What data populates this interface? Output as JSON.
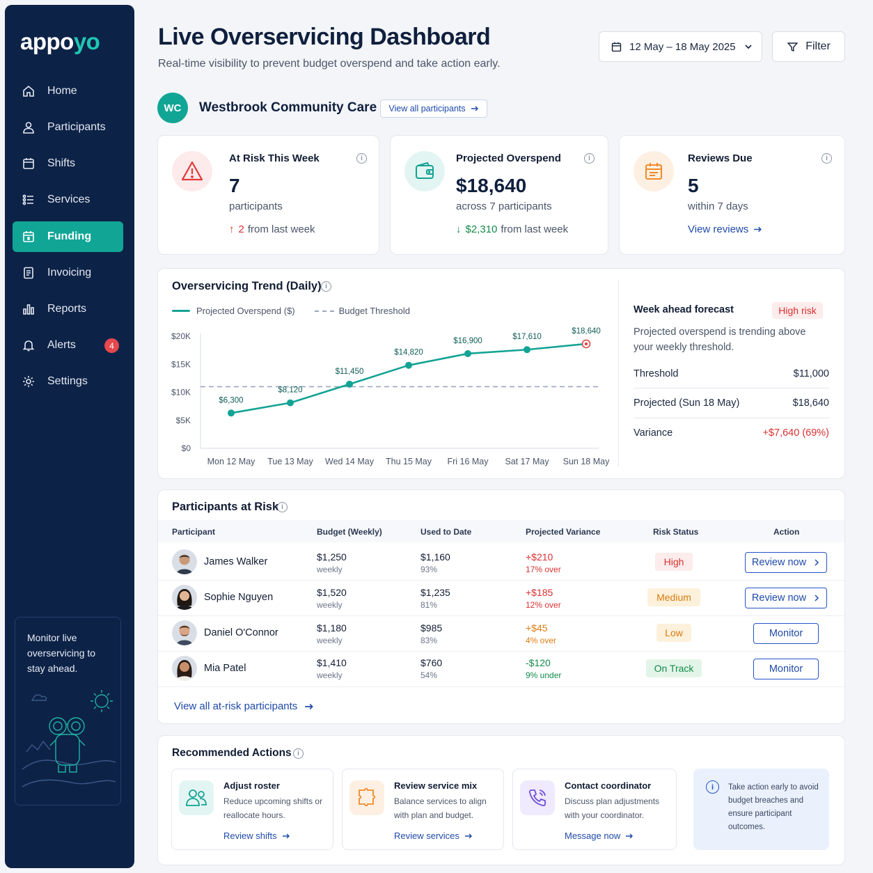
{
  "app": {
    "logo_main": "appo",
    "logo_accent": "yo"
  },
  "sidebar": {
    "items": [
      {
        "label": "Home",
        "icon": "home-icon"
      },
      {
        "label": "Participants",
        "icon": "user-icon"
      },
      {
        "label": "Shifts",
        "icon": "calendar-icon"
      },
      {
        "label": "Services",
        "icon": "services-icon"
      },
      {
        "label": "Funding",
        "icon": "funding-icon",
        "active": true
      },
      {
        "label": "Invoicing",
        "icon": "invoice-icon"
      },
      {
        "label": "Reports",
        "icon": "bar-chart-icon"
      },
      {
        "label": "Alerts",
        "icon": "bell-icon",
        "badge": "4"
      },
      {
        "label": "Settings",
        "icon": "gear-icon"
      }
    ],
    "promo_text": "Monitor live overservicing to stay ahead."
  },
  "header": {
    "title": "Live Overservicing Dashboard",
    "subtitle": "Real-time visibility to prevent budget overspend and take action early.",
    "date_range": "12 May – 18 May 2025",
    "filter_label": "Filter"
  },
  "org": {
    "initials": "WC",
    "name": "Westbrook Community Care",
    "view_all_label": "View all participants"
  },
  "kpis": {
    "at_risk": {
      "title": "At Risk This Week",
      "value": "7",
      "sub": "participants",
      "delta_value": "2",
      "delta_text": "from last week"
    },
    "overspend": {
      "title": "Projected Overspend",
      "value": "$18,640",
      "sub": "across 7 participants",
      "delta_value": "$2,310",
      "delta_text": "from last week"
    },
    "reviews": {
      "title": "Reviews Due",
      "value": "5",
      "sub": "within 7 days",
      "link": "View reviews"
    }
  },
  "trend": {
    "title": "Overservicing Trend (Daily)",
    "legend_series": "Projected Overspend ($)",
    "legend_threshold": "Budget Threshold"
  },
  "chart_data": {
    "type": "line",
    "categories": [
      "Mon 12 May",
      "Tue 13 May",
      "Wed 14 May",
      "Thu 15 May",
      "Fri 16 May",
      "Sat 17 May",
      "Sun 18 May"
    ],
    "series": [
      {
        "name": "Projected Overspend ($)",
        "values": [
          6300,
          8120,
          11450,
          14820,
          16900,
          17610,
          18640
        ],
        "color": "#13a394"
      },
      {
        "name": "Budget Threshold",
        "values": [
          11000,
          11000,
          11000,
          11000,
          11000,
          11000,
          11000
        ],
        "color": "#9aa7bc"
      }
    ],
    "data_labels": [
      "$6,300",
      "$8,120",
      "$11,450",
      "$14,820",
      "$16,900",
      "$17,610",
      "$18,640"
    ],
    "y_ticks": [
      "$0",
      "$5K",
      "$10K",
      "$15K",
      "$20K"
    ],
    "y_tick_values": [
      0,
      5000,
      10000,
      15000,
      20000
    ],
    "ylim": [
      0,
      20000
    ],
    "grid": false
  },
  "forecast": {
    "title": "Week ahead forecast",
    "risk_label": "High risk",
    "description": "Projected overspend is trending above your weekly threshold.",
    "rows": [
      {
        "label": "Threshold",
        "value": "$11,000"
      },
      {
        "label": "Projected (Sun 18 May)",
        "value": "$18,640"
      },
      {
        "label": "Variance",
        "value": "+$7,640 (69%)"
      }
    ]
  },
  "participants": {
    "title": "Participants at Risk",
    "columns": [
      "Participant",
      "Budget (Weekly)",
      "Used to Date",
      "Projected Variance",
      "Risk Status",
      "Action"
    ],
    "rows": [
      {
        "name": "James Walker",
        "budget": "$1,250",
        "budget_sub": "weekly",
        "used": "$1,160",
        "used_sub": "93%",
        "variance": "+$210",
        "variance_sub": "17% over",
        "status": "High",
        "action": "Review now"
      },
      {
        "name": "Sophie Nguyen",
        "budget": "$1,520",
        "budget_sub": "weekly",
        "used": "$1,235",
        "used_sub": "81%",
        "variance": "+$185",
        "variance_sub": "12% over",
        "status": "Medium",
        "action": "Review now"
      },
      {
        "name": "Daniel O'Connor",
        "budget": "$1,180",
        "budget_sub": "weekly",
        "used": "$985",
        "used_sub": "83%",
        "variance": "+$45",
        "variance_sub": "4% over",
        "status": "Low",
        "action": "Monitor"
      },
      {
        "name": "Mia Patel",
        "budget": "$1,410",
        "budget_sub": "weekly",
        "used": "$760",
        "used_sub": "54%",
        "variance": "-$120",
        "variance_sub": "9% under",
        "status": "On Track",
        "action": "Monitor"
      }
    ],
    "view_all_label": "View all at-risk participants"
  },
  "recommended": {
    "title": "Recommended Actions",
    "cards": [
      {
        "title": "Adjust roster",
        "desc": "Reduce upcoming shifts or reallocate hours.",
        "link": "Review shifts",
        "icon": "users-icon"
      },
      {
        "title": "Review service mix",
        "desc": "Balance services to align with plan and budget.",
        "link": "Review services",
        "icon": "puzzle-icon"
      },
      {
        "title": "Contact coordinator",
        "desc": "Discuss plan adjustments with your coordinator.",
        "link": "Message now",
        "icon": "phone-icon"
      }
    ],
    "tip": "Take action early to avoid budget breaches and ensure participant outcomes."
  },
  "colors": {
    "navy": "#0d2247",
    "teal": "#11a596",
    "danger": "#d93030",
    "success": "#138a4a",
    "warning": "#e07b10",
    "link": "#1f4aa8"
  }
}
